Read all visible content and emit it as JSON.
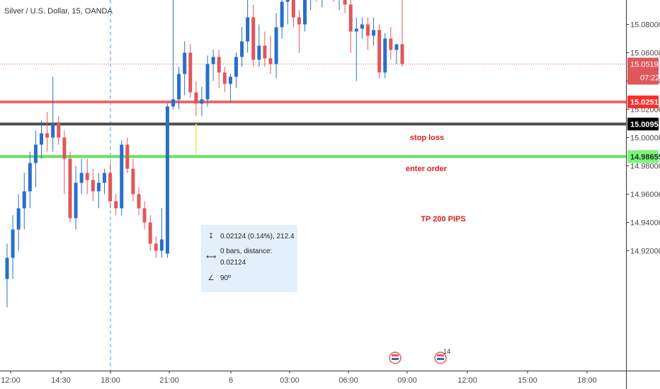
{
  "header": {
    "symbol_line": "Silver / U.S. Dollar, 15, OANDA"
  },
  "chart_data": {
    "type": "candlestick",
    "title": "Silver / U.S. Dollar, 15, OANDA",
    "price_axis": {
      "ticks": [
        "15.08000",
        "15.06000",
        "15.04000",
        "15.02000",
        "15.00000",
        "14.98000",
        "14.96000",
        "14.94000",
        "14.92000"
      ],
      "ylim": [
        14.912,
        15.107
      ]
    },
    "time_axis": {
      "ticks": [
        "12:00",
        "14:30",
        "18:00",
        "21:00",
        "6",
        "03:00",
        "06:00",
        "09:00",
        "12:00",
        "15:00",
        "18:00"
      ]
    },
    "up_color": "#2a6fc9",
    "down_color": "#e0575b",
    "candles": [
      [
        14.9,
        14.925,
        14.88,
        14.915
      ],
      [
        14.915,
        14.945,
        14.9,
        14.935
      ],
      [
        14.935,
        14.96,
        14.92,
        14.95
      ],
      [
        14.95,
        14.975,
        14.935,
        14.962
      ],
      [
        14.962,
        14.99,
        14.95,
        14.982
      ],
      [
        14.982,
        15.005,
        14.965,
        14.995
      ],
      [
        14.995,
        15.012,
        14.985,
        15.003
      ],
      [
        15.003,
        15.018,
        14.99,
        15.0
      ],
      [
        15.0,
        15.043,
        14.99,
        15.01
      ],
      [
        15.01,
        15.015,
        14.995,
        15.0
      ],
      [
        15.0,
        15.005,
        14.96,
        14.985
      ],
      [
        14.985,
        14.99,
        14.94,
        14.943
      ],
      [
        14.943,
        14.98,
        14.935,
        14.968
      ],
      [
        14.968,
        14.985,
        14.96,
        14.975
      ],
      [
        14.975,
        14.985,
        14.96,
        14.97
      ],
      [
        14.97,
        14.978,
        14.955,
        14.962
      ],
      [
        14.962,
        14.975,
        14.95,
        14.968
      ],
      [
        14.968,
        14.978,
        14.96,
        14.975
      ],
      [
        14.975,
        14.982,
        14.95,
        14.955
      ],
      [
        14.955,
        14.96,
        14.945,
        14.95
      ],
      [
        14.95,
        14.998,
        14.945,
        14.995
      ],
      [
        14.995,
        15.0,
        14.975,
        14.978
      ],
      [
        14.978,
        14.985,
        14.955,
        14.96
      ],
      [
        14.96,
        14.965,
        14.945,
        14.95
      ],
      [
        14.95,
        14.955,
        14.935,
        14.94
      ],
      [
        14.94,
        14.945,
        14.92,
        14.925
      ],
      [
        14.925,
        14.93,
        14.915,
        14.92
      ],
      [
        14.92,
        14.95,
        14.915,
        14.928
      ],
      [
        14.918,
        15.024,
        14.915,
        15.022
      ],
      [
        15.022,
        15.108,
        15.02,
        15.027
      ],
      [
        15.027,
        15.05,
        15.02,
        15.045
      ],
      [
        15.045,
        15.068,
        15.03,
        15.06
      ],
      [
        15.06,
        15.066,
        15.028,
        15.032
      ],
      [
        15.032,
        15.04,
        15.015,
        15.024
      ],
      [
        15.024,
        15.036,
        15.015,
        15.027
      ],
      [
        15.027,
        15.058,
        15.022,
        15.052
      ],
      [
        15.052,
        15.062,
        15.04,
        15.057
      ],
      [
        15.057,
        15.062,
        15.035,
        15.046
      ],
      [
        15.046,
        15.05,
        15.032,
        15.038
      ],
      [
        15.038,
        15.045,
        15.025,
        15.043
      ],
      [
        15.043,
        15.06,
        15.035,
        15.057
      ],
      [
        15.057,
        15.078,
        15.05,
        15.068
      ],
      [
        15.068,
        15.098,
        15.06,
        15.085
      ],
      [
        15.085,
        15.094,
        15.05,
        15.055
      ],
      [
        15.055,
        15.08,
        15.05,
        15.065
      ],
      [
        15.065,
        15.075,
        15.05,
        15.056
      ],
      [
        15.056,
        15.072,
        15.045,
        15.052
      ],
      [
        15.052,
        15.088,
        15.042,
        15.078
      ],
      [
        15.078,
        15.104,
        15.07,
        15.096
      ],
      [
        15.096,
        15.11,
        15.08,
        15.1
      ],
      [
        15.1,
        15.104,
        15.078,
        15.085
      ],
      [
        15.085,
        15.09,
        15.06,
        15.08
      ],
      [
        15.08,
        15.108,
        15.075,
        15.1
      ],
      [
        15.1,
        15.108,
        15.09,
        15.104
      ],
      [
        15.104,
        15.108,
        15.096,
        15.1
      ],
      [
        15.1,
        15.108,
        15.092,
        15.102
      ],
      [
        15.102,
        15.108,
        15.098,
        15.104
      ],
      [
        15.104,
        15.106,
        15.096,
        15.1
      ],
      [
        15.1,
        15.11,
        15.09,
        15.102
      ],
      [
        15.102,
        15.106,
        15.088,
        15.094
      ],
      [
        15.094,
        15.108,
        15.06,
        15.075
      ],
      [
        15.075,
        15.085,
        15.04,
        15.077
      ],
      [
        15.077,
        15.085,
        15.07,
        15.08
      ],
      [
        15.08,
        15.085,
        15.062,
        15.072
      ],
      [
        15.072,
        15.085,
        15.065,
        15.076
      ],
      [
        15.076,
        15.08,
        15.042,
        15.046
      ],
      [
        15.046,
        15.074,
        15.042,
        15.07
      ],
      [
        15.07,
        15.078,
        15.055,
        15.062
      ],
      [
        15.062,
        15.066,
        15.052,
        15.066
      ],
      [
        15.066,
        15.11,
        15.05,
        15.052
      ]
    ],
    "horizontal_lines": [
      {
        "label": "stop loss",
        "value": 15.02517,
        "color": "#e8696b",
        "label_color": "#e01b1b",
        "tag": "15.02517",
        "tag_color": "#ff2b2b"
      },
      {
        "label": "enter order",
        "value": 15.00956,
        "color": "#4b4b4b",
        "label_color": "#e01b1b",
        "tag": "15.00956",
        "tag_color": "#000000"
      },
      {
        "label": "TP 200 PIPS",
        "value": 14.98655,
        "color": "#66e060",
        "label_color": "#e01b1b",
        "tag": "14.98655",
        "tag_color": "#7cf27a"
      }
    ],
    "current_price": {
      "value": 15.05196,
      "tag": "15.05196",
      "countdown": "07:22",
      "color": "#e0575b"
    },
    "measure": {
      "price_line": "0.02124 (0.14%), 212.4",
      "bars_line": "0 bars, distance: 0.02124",
      "angle_line": "90º",
      "from": 15.00956,
      "to": 14.98832
    },
    "event_markers": [
      {
        "label": ""
      },
      {
        "label": "14"
      }
    ],
    "grid": false
  }
}
